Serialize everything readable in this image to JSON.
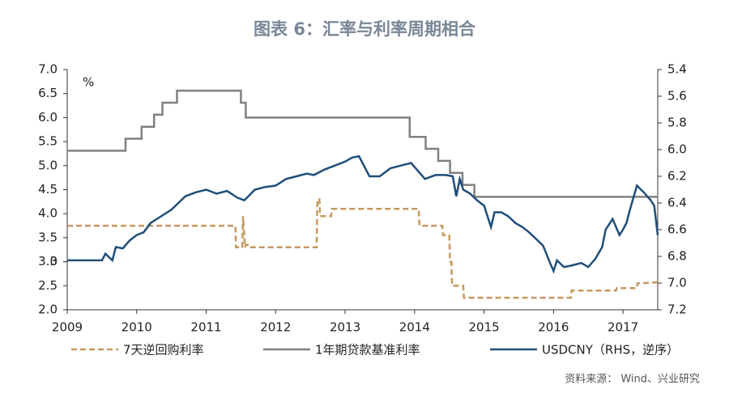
{
  "chart_data": {
    "type": "line",
    "title": "图表 6：汇率与利率周期相合",
    "y_unit": "%",
    "source": "资料来源： Wind、兴业研究",
    "xlim": [
      2009,
      2017.5
    ],
    "xticks": [
      2009,
      2010,
      2011,
      2012,
      2013,
      2014,
      2015,
      2016,
      2017
    ],
    "ylim": [
      2.0,
      7.0
    ],
    "yticks": [
      {
        "value": 2.0,
        "label": "2.0"
      },
      2.5,
      3,
      {
        "value": 3.0,
        "label": "3.0"
      },
      3.5,
      {
        "value": 4.0,
        "label": "4.0"
      },
      4.5,
      {
        "value": 5.0,
        "label": "5.0"
      },
      5.5,
      {
        "value": 6.0,
        "label": "6.0"
      },
      6.5,
      {
        "value": 7.0,
        "label": "7.0"
      }
    ],
    "y2lim": [
      5.4,
      7.2
    ],
    "y2_reversed": true,
    "y2ticks": [
      5.4,
      5.6,
      5.8,
      {
        "value": 6.0,
        "label": "6.0"
      },
      6.2,
      6.4,
      6.6,
      6.8,
      {
        "value": 7.0,
        "label": "7.0"
      },
      7.2
    ],
    "series": [
      {
        "name": "7天逆回购利率",
        "color": "#c49a5e",
        "dashed": true,
        "x": [
          2009,
          2011.42,
          2011.43,
          2011.52,
          2011.53,
          2011.56,
          2011.57,
          2011.62,
          2011.63,
          2012.59,
          2012.6,
          2012.63,
          2012.64,
          2012.8,
          2012.81,
          2013.1,
          2014.06,
          2014.07,
          2014.4,
          2014.41,
          2014.5,
          2014.51,
          2014.53,
          2014.54,
          2014.7,
          2014.71,
          2015.8,
          2016.25,
          2016.26,
          2016.9,
          2016.91,
          2017.2,
          2017.21,
          2017.5
        ],
        "values": [
          3.75,
          3.75,
          3.3,
          3.3,
          3.95,
          3.3,
          3.35,
          3.35,
          3.3,
          3.3,
          4.3,
          4.3,
          3.95,
          3.95,
          4.1,
          4.1,
          4.1,
          3.75,
          3.75,
          3.55,
          3.55,
          3.0,
          3.0,
          2.5,
          2.5,
          2.25,
          2.25,
          2.25,
          2.4,
          2.4,
          2.45,
          2.45,
          2.55,
          2.57
        ]
      },
      {
        "name": "1年期贷款基准利率",
        "color": "#808080",
        "dashed": false,
        "x": [
          2009,
          2009.84,
          2009.84,
          2010.07,
          2010.07,
          2010.25,
          2010.25,
          2010.37,
          2010.37,
          2010.58,
          2010.58,
          2011.5,
          2011.5,
          2011.57,
          2011.57,
          2013.93,
          2013.93,
          2014.16,
          2014.16,
          2014.34,
          2014.34,
          2014.51,
          2014.51,
          2014.69,
          2014.69,
          2014.86,
          2014.86,
          2017.5
        ],
        "values": [
          5.31,
          5.31,
          5.56,
          5.56,
          5.81,
          5.81,
          6.06,
          6.06,
          6.31,
          6.31,
          6.56,
          6.56,
          6.31,
          6.31,
          6.0,
          6.0,
          5.6,
          5.6,
          5.35,
          5.35,
          5.1,
          5.1,
          4.85,
          4.85,
          4.6,
          4.6,
          4.35,
          4.35
        ]
      },
      {
        "name": "USDCNY（RHS，逆序）",
        "color": "#1f4e79",
        "dashed": false,
        "axis": "y2",
        "x": [
          2009,
          2009.3,
          2009.5,
          2009.55,
          2009.65,
          2009.7,
          2009.8,
          2009.9,
          2010.0,
          2010.1,
          2010.2,
          2010.35,
          2010.5,
          2010.6,
          2010.7,
          2010.85,
          2011.0,
          2011.15,
          2011.3,
          2011.45,
          2011.55,
          2011.7,
          2011.85,
          2012.0,
          2012.15,
          2012.3,
          2012.45,
          2012.55,
          2012.7,
          2012.85,
          2013.0,
          2013.1,
          2013.2,
          2013.25,
          2013.35,
          2013.5,
          2013.65,
          2013.8,
          2013.95,
          2014.05,
          2014.15,
          2014.3,
          2014.45,
          2014.55,
          2014.6,
          2014.65,
          2014.7,
          2014.8,
          2014.9,
          2015.0,
          2015.1,
          2015.15,
          2015.25,
          2015.35,
          2015.45,
          2015.55,
          2015.65,
          2015.75,
          2015.85,
          2015.95,
          2016.0,
          2016.05,
          2016.15,
          2016.25,
          2016.4,
          2016.5,
          2016.6,
          2016.7,
          2016.75,
          2016.85,
          2016.95,
          2017.0,
          2017.05,
          2017.1,
          2017.2,
          2017.3,
          2017.4,
          2017.45,
          2017.5
        ],
        "values": [
          6.83,
          6.83,
          6.83,
          6.78,
          6.83,
          6.73,
          6.74,
          6.68,
          6.64,
          6.62,
          6.55,
          6.5,
          6.45,
          6.4,
          6.35,
          6.32,
          6.3,
          6.33,
          6.31,
          6.36,
          6.38,
          6.3,
          6.28,
          6.27,
          6.22,
          6.2,
          6.18,
          6.19,
          6.15,
          6.12,
          6.09,
          6.06,
          6.05,
          6.1,
          6.2,
          6.2,
          6.14,
          6.12,
          6.1,
          6.16,
          6.22,
          6.19,
          6.19,
          6.2,
          6.35,
          6.22,
          6.3,
          6.33,
          6.38,
          6.42,
          6.58,
          6.47,
          6.47,
          6.5,
          6.55,
          6.58,
          6.62,
          6.67,
          6.72,
          6.85,
          6.91,
          6.83,
          6.88,
          6.87,
          6.85,
          6.88,
          6.82,
          6.73,
          6.6,
          6.52,
          6.64,
          6.6,
          6.55,
          6.45,
          6.27,
          6.32,
          6.38,
          6.42,
          6.64
        ]
      }
    ]
  }
}
